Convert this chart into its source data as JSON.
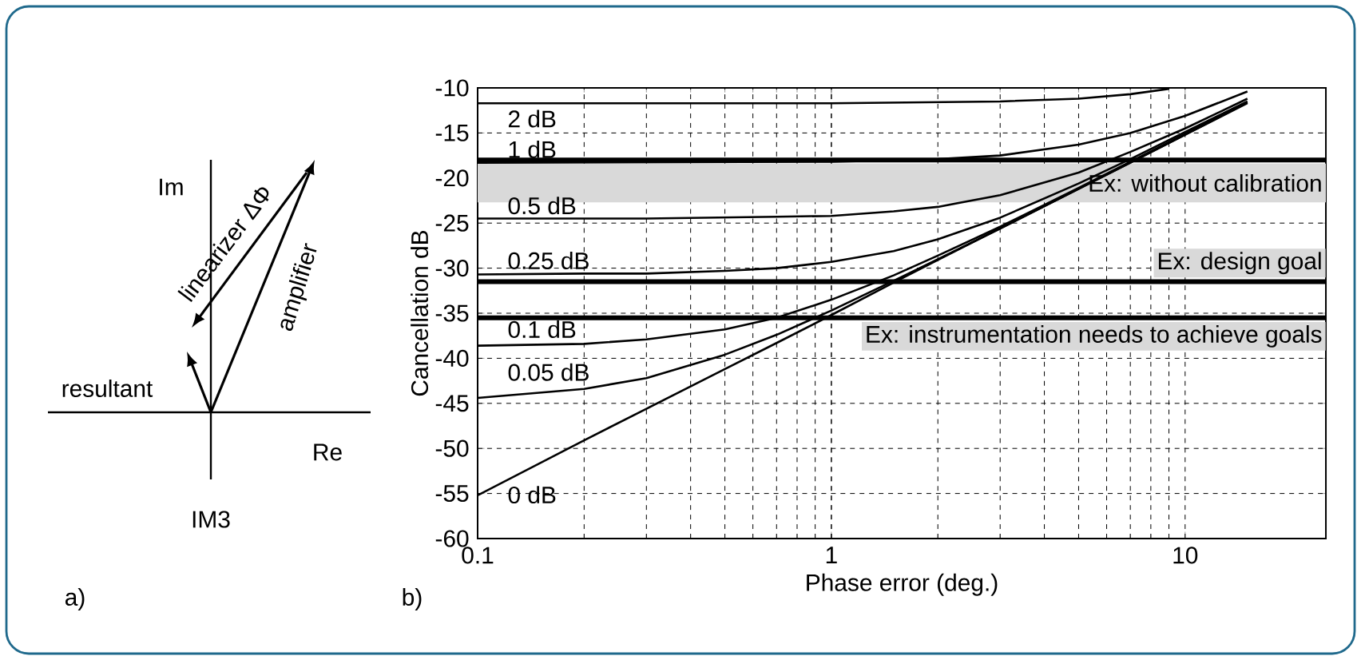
{
  "chart_data": [
    {
      "type": "other",
      "annotations": [
        "Im",
        "Re",
        "IM3",
        "resultant",
        "linearizer ΔΦ",
        "amplifier",
        "a)"
      ]
    },
    {
      "type": "line",
      "xlabel": "Phase error (deg.)",
      "ylabel": "Cancellation dB",
      "log": "x",
      "grid": true,
      "xlim": [
        0.1,
        25
      ],
      "xticks": [
        0.1,
        1,
        10
      ],
      "ylim": [
        -60,
        -10
      ],
      "yticks": [
        -60,
        -55,
        -50,
        -45,
        -40,
        -35,
        -30,
        -25,
        -20,
        -15,
        -10
      ],
      "series": [
        {
          "name": "2 dB",
          "color": "#000000",
          "x": [
            0.1,
            1,
            3,
            5,
            7,
            9
          ],
          "values": [
            -11.7,
            -11.7,
            -11.5,
            -11.2,
            -10.7,
            -10.1
          ]
        },
        {
          "name": "1 dB",
          "color": "#000000",
          "x": [
            0.1,
            1,
            2,
            3,
            5,
            7,
            10,
            15
          ],
          "values": [
            -18.3,
            -18.2,
            -17.9,
            -17.5,
            -16.3,
            -15.0,
            -13.1,
            -10.4
          ]
        },
        {
          "name": "0.5 dB",
          "color": "#000000",
          "x": [
            0.1,
            0.3,
            0.7,
            1,
            1.5,
            2,
            3,
            5,
            7,
            10,
            15
          ],
          "values": [
            -24.5,
            -24.5,
            -24.3,
            -24.2,
            -23.7,
            -23.2,
            -21.9,
            -19.4,
            -17.1,
            -14.5,
            -11.2
          ]
        },
        {
          "name": "0.25 dB",
          "color": "#000000",
          "x": [
            0.1,
            0.2,
            0.3,
            0.5,
            0.7,
            1,
            1.5,
            2,
            3,
            5,
            7,
            10,
            15
          ],
          "values": [
            -30.7,
            -30.6,
            -30.6,
            -30.3,
            -30.0,
            -29.3,
            -28.1,
            -26.8,
            -24.4,
            -20.6,
            -17.9,
            -14.9,
            -11.5
          ]
        },
        {
          "name": "0.1 dB",
          "color": "#000000",
          "x": [
            0.1,
            0.2,
            0.3,
            0.5,
            0.7,
            1,
            1.5,
            2,
            3,
            5,
            7,
            10,
            15
          ],
          "values": [
            -38.6,
            -38.4,
            -37.9,
            -36.8,
            -35.5,
            -33.5,
            -30.8,
            -28.6,
            -25.4,
            -21.1,
            -18.2,
            -15.1,
            -11.6
          ]
        },
        {
          "name": "0.05 dB",
          "color": "#000000",
          "x": [
            0.1,
            0.2,
            0.3,
            0.5,
            0.7,
            1,
            1.5,
            2,
            3,
            5,
            7,
            10,
            15
          ],
          "values": [
            -44.4,
            -43.4,
            -42.2,
            -39.6,
            -37.4,
            -34.7,
            -31.4,
            -29.0,
            -25.6,
            -21.2,
            -18.3,
            -15.2,
            -11.6
          ]
        },
        {
          "name": "0 dB",
          "color": "#000000",
          "x": [
            0.1,
            0.2,
            0.3,
            0.5,
            0.7,
            1,
            1.5,
            2,
            3,
            5,
            7,
            10,
            15
          ],
          "values": [
            -55.2,
            -49.1,
            -45.6,
            -41.2,
            -38.3,
            -35.2,
            -31.6,
            -29.1,
            -25.6,
            -21.2,
            -18.3,
            -15.2,
            -11.7
          ]
        }
      ],
      "bands": [
        {
          "axis": "y",
          "from": -22.7,
          "to": -18.4,
          "label": "Ex: without calibration",
          "color": "#d9d9d9"
        }
      ],
      "ref_lines": [
        {
          "axis": "y",
          "value": -18,
          "color": "#000000"
        },
        {
          "axis": "y",
          "value": -31.5,
          "label": "Ex: design goal",
          "color": "#000000"
        },
        {
          "axis": "y",
          "value": -35.5,
          "label": "Ex: instrumentation needs to achieve goals",
          "color": "#000000"
        }
      ],
      "annotations": [
        "b)"
      ]
    }
  ]
}
